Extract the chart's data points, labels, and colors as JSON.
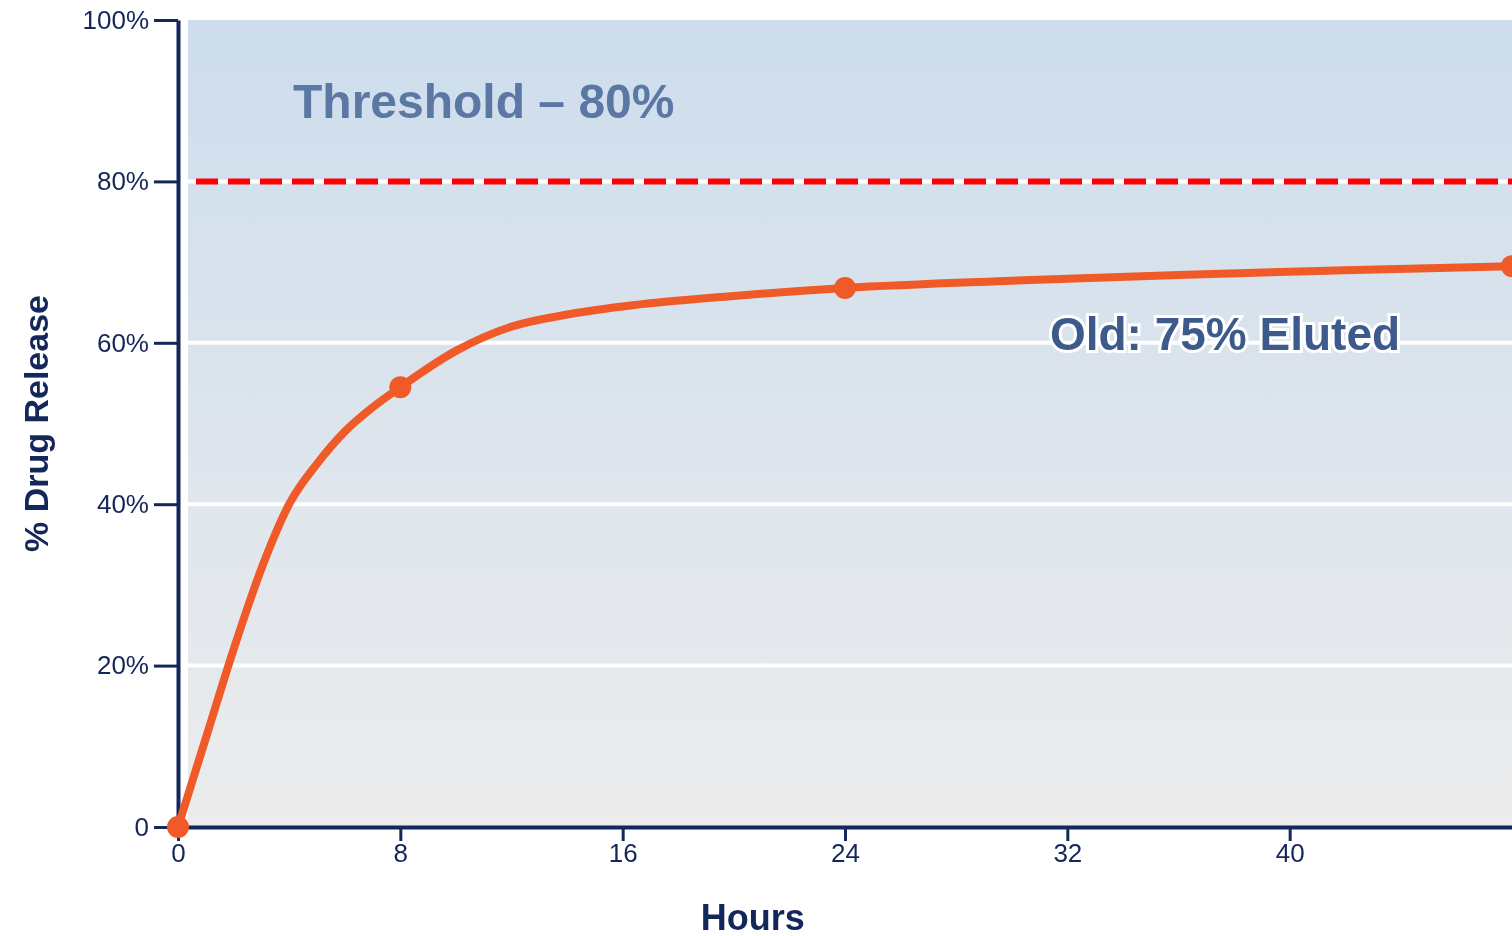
{
  "chart_data": {
    "type": "line",
    "xlabel": "Hours",
    "ylabel": "% Drug Release",
    "xlim": [
      0,
      48
    ],
    "xticks": [
      0,
      8,
      16,
      24,
      32,
      40
    ],
    "ylim": [
      0,
      100
    ],
    "yticks": [
      0,
      {
        "value": 20,
        "label": "20%"
      },
      {
        "value": 40,
        "label": "40%"
      },
      {
        "value": 60,
        "label": "60%"
      },
      {
        "value": 80,
        "label": "80%"
      },
      {
        "value": 100,
        "label": "100%"
      }
    ],
    "grid": "y",
    "line_style": "solid",
    "series": [
      {
        "color": "#f05a28",
        "x": [
          0,
          1,
          2,
          3,
          4,
          5,
          6,
          7,
          8,
          10,
          12,
          14,
          16,
          20,
          24,
          30,
          36,
          42,
          48
        ],
        "values": [
          0,
          11,
          22,
          32,
          40,
          45,
          49,
          52,
          54.5,
          59,
          62,
          63.5,
          64.5,
          65.8,
          66.8,
          67.7,
          68.4,
          69,
          69.5
        ]
      },
      {
        "type": "scatter",
        "color": "#f05a28",
        "marker": "circle",
        "x": [
          0,
          8,
          24,
          48
        ],
        "values": [
          0,
          54.5,
          66.8,
          69.5
        ]
      }
    ],
    "ref_lines": [
      {
        "axis": "y",
        "value": 80,
        "label": "Threshold – 80%",
        "color": "#ff0000",
        "line_style": "dashed"
      }
    ],
    "annotations": [
      "Old: 75% Eluted"
    ]
  }
}
